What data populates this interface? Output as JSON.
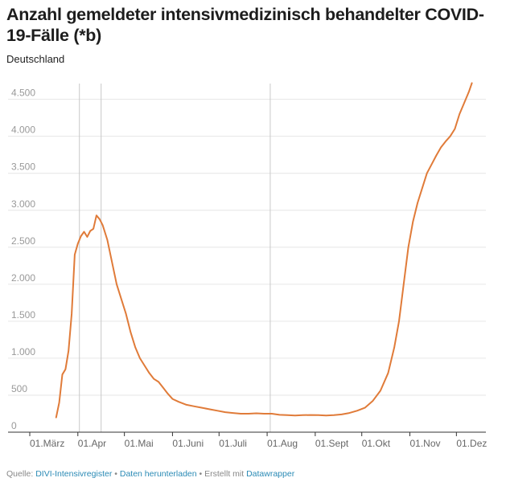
{
  "title": "Anzahl gemeldeter intensivmedizinisch behandelter COVID-19-Fälle (*b)",
  "subtitle": "Deutschland",
  "footer": {
    "source_label": "Quelle:",
    "source_name": "DIVI-Intensivregister",
    "separator_1": "•",
    "download_label": "Daten herunterladen",
    "separator_2": "•",
    "created_with_label": "Erstellt mit",
    "tool_name": "Datawrapper"
  },
  "colors": {
    "line": "#e07b39",
    "grid": "#e6e6e6",
    "marker": "#c8c8c8",
    "link": "#2a8ab5"
  },
  "chart_data": {
    "type": "line",
    "title": "Anzahl gemeldeter intensivmedizinisch behandelter COVID-19-Fälle (*b)",
    "subtitle": "Deutschland",
    "xlabel": "",
    "ylabel": "",
    "ylim": [
      0,
      4800
    ],
    "xlim": [
      "2020-03-01",
      "2020-12-20"
    ],
    "grid": "horizontal",
    "legend": "none",
    "y_ticks": [
      {
        "value": 0,
        "label": "0"
      },
      {
        "value": 500,
        "label": "500"
      },
      {
        "value": 1000,
        "label": "1.000"
      },
      {
        "value": 1500,
        "label": "1.500"
      },
      {
        "value": 2000,
        "label": "2.000"
      },
      {
        "value": 2500,
        "label": "2.500"
      },
      {
        "value": 3000,
        "label": "3.000"
      },
      {
        "value": 3500,
        "label": "3.500"
      },
      {
        "value": 4000,
        "label": "4.000"
      },
      {
        "value": 4500,
        "label": "4.500"
      }
    ],
    "x_ticks": [
      {
        "date": "2020-03-01",
        "label": "01.März"
      },
      {
        "date": "2020-04-01",
        "label": "01.Apr"
      },
      {
        "date": "2020-05-01",
        "label": "01.Mai"
      },
      {
        "date": "2020-06-01",
        "label": "01.Juni"
      },
      {
        "date": "2020-07-01",
        "label": "01.Juli"
      },
      {
        "date": "2020-08-01",
        "label": "01.Aug"
      },
      {
        "date": "2020-09-01",
        "label": "01.Sept"
      },
      {
        "date": "2020-10-01",
        "label": "01.Okt"
      },
      {
        "date": "2020-11-01",
        "label": "01.Nov"
      },
      {
        "date": "2020-12-01",
        "label": "01.Dez"
      }
    ],
    "reference_lines": [
      "2020-04-02",
      "2020-04-16",
      "2020-08-03"
    ],
    "series": [
      {
        "values": [
          [
            "2020-03-18",
            200
          ],
          [
            "2020-03-20",
            400
          ],
          [
            "2020-03-22",
            780
          ],
          [
            "2020-03-24",
            850
          ],
          [
            "2020-03-26",
            1100
          ],
          [
            "2020-03-28",
            1600
          ],
          [
            "2020-03-30",
            2400
          ],
          [
            "2020-04-01",
            2550
          ],
          [
            "2020-04-03",
            2650
          ],
          [
            "2020-04-05",
            2710
          ],
          [
            "2020-04-07",
            2640
          ],
          [
            "2020-04-09",
            2720
          ],
          [
            "2020-04-11",
            2750
          ],
          [
            "2020-04-13",
            2930
          ],
          [
            "2020-04-15",
            2880
          ],
          [
            "2020-04-17",
            2800
          ],
          [
            "2020-04-20",
            2600
          ],
          [
            "2020-04-23",
            2300
          ],
          [
            "2020-04-26",
            2000
          ],
          [
            "2020-04-29",
            1800
          ],
          [
            "2020-05-02",
            1600
          ],
          [
            "2020-05-05",
            1350
          ],
          [
            "2020-05-08",
            1150
          ],
          [
            "2020-05-11",
            1000
          ],
          [
            "2020-05-14",
            900
          ],
          [
            "2020-05-17",
            800
          ],
          [
            "2020-05-20",
            720
          ],
          [
            "2020-05-23",
            680
          ],
          [
            "2020-05-26",
            600
          ],
          [
            "2020-05-29",
            520
          ],
          [
            "2020-06-01",
            450
          ],
          [
            "2020-06-05",
            410
          ],
          [
            "2020-06-10",
            370
          ],
          [
            "2020-06-15",
            350
          ],
          [
            "2020-06-20",
            330
          ],
          [
            "2020-06-25",
            310
          ],
          [
            "2020-06-30",
            290
          ],
          [
            "2020-07-05",
            270
          ],
          [
            "2020-07-10",
            260
          ],
          [
            "2020-07-15",
            250
          ],
          [
            "2020-07-20",
            250
          ],
          [
            "2020-07-25",
            255
          ],
          [
            "2020-07-30",
            250
          ],
          [
            "2020-08-04",
            250
          ],
          [
            "2020-08-09",
            235
          ],
          [
            "2020-08-14",
            230
          ],
          [
            "2020-08-19",
            225
          ],
          [
            "2020-08-24",
            230
          ],
          [
            "2020-08-29",
            232
          ],
          [
            "2020-09-03",
            230
          ],
          [
            "2020-09-08",
            225
          ],
          [
            "2020-09-13",
            230
          ],
          [
            "2020-09-18",
            240
          ],
          [
            "2020-09-23",
            260
          ],
          [
            "2020-09-28",
            290
          ],
          [
            "2020-10-03",
            330
          ],
          [
            "2020-10-08",
            420
          ],
          [
            "2020-10-13",
            560
          ],
          [
            "2020-10-18",
            800
          ],
          [
            "2020-10-22",
            1150
          ],
          [
            "2020-10-25",
            1500
          ],
          [
            "2020-10-28",
            2000
          ],
          [
            "2020-10-31",
            2500
          ],
          [
            "2020-11-03",
            2850
          ],
          [
            "2020-11-06",
            3100
          ],
          [
            "2020-11-09",
            3300
          ],
          [
            "2020-11-12",
            3500
          ],
          [
            "2020-11-15",
            3620
          ],
          [
            "2020-11-18",
            3740
          ],
          [
            "2020-11-21",
            3850
          ],
          [
            "2020-11-24",
            3930
          ],
          [
            "2020-11-27",
            4000
          ],
          [
            "2020-11-30",
            4100
          ],
          [
            "2020-12-03",
            4300
          ],
          [
            "2020-12-06",
            4450
          ],
          [
            "2020-12-09",
            4600
          ],
          [
            "2020-12-11",
            4720
          ]
        ]
      }
    ]
  }
}
